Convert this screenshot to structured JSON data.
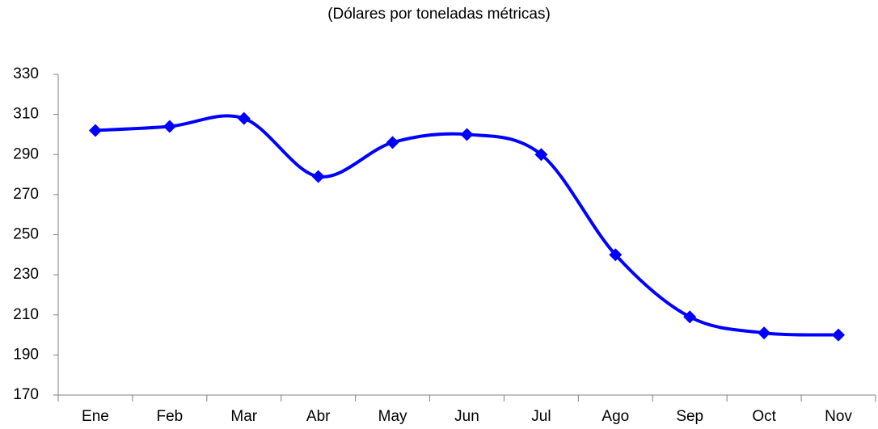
{
  "chart_data": {
    "type": "line",
    "subtitle": "(Dólares por toneladas métricas)",
    "categories": [
      "Ene",
      "Feb",
      "Mar",
      "Abr",
      "May",
      "Jun",
      "Jul",
      "Ago",
      "Sep",
      "Oct",
      "Nov"
    ],
    "series": [
      {
        "color": "#0000ff",
        "values": [
          302,
          304,
          308,
          279,
          296,
          300,
          290,
          240,
          209,
          201,
          200
        ]
      }
    ],
    "ylim": [
      170,
      330
    ],
    "yticks": [
      170,
      190,
      210,
      230,
      250,
      270,
      290,
      310,
      330
    ],
    "smooth": true,
    "markers": "diamond",
    "grid": false
  }
}
